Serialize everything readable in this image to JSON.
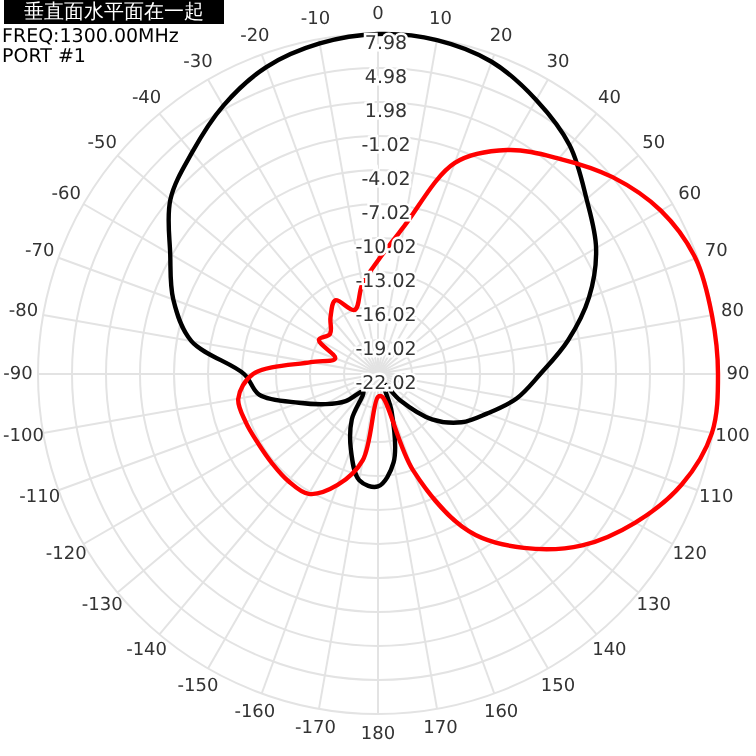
{
  "chart_data": {
    "type": "radar",
    "title": "垂直面水平面在一起",
    "annotations": [
      "FREQ:1300.00MHz",
      "PORT #1"
    ],
    "categories": [
      "0",
      "10",
      "20",
      "30",
      "40",
      "50",
      "60",
      "70",
      "80",
      "90",
      "100",
      "110",
      "120",
      "130",
      "140",
      "150",
      "160",
      "170",
      "180",
      "-170",
      "-160",
      "-150",
      "-140",
      "-130",
      "-120",
      "-110",
      "-100",
      "-90",
      "-80",
      "-70",
      "-60",
      "-50",
      "-40",
      "-30",
      "-20",
      "-10"
    ],
    "series": [
      {
        "color": "#000000",
        "values": [
          7.98,
          7.9,
          7.3,
          5.9,
          4.3,
          2.0,
          0.2,
          -2.2,
          -5.0,
          -7.7,
          -9.6,
          -11.8,
          -13.5,
          -15.8,
          -19,
          -21,
          -18.5,
          -14.1,
          -12.1,
          -12.5,
          -15,
          -17.4,
          -20,
          -18.3,
          -16.7,
          -14.6,
          -11.4,
          -10.2,
          -5.3,
          -2.8,
          -0.85,
          1.9,
          3.5,
          5.3,
          6.8,
          7.6
        ]
      },
      {
        "color": "#ff0000",
        "values": [
          -12,
          -8.8,
          -2.2,
          0.8,
          2.8,
          5.0,
          6.8,
          7.8,
          7.9,
          7.98,
          7.9,
          6.5,
          4.2,
          1.5,
          -2.0,
          -6.0,
          -13,
          -20,
          -20,
          -14.3,
          -11.6,
          -9.8,
          -9.7,
          -9.8,
          -9.8,
          -9.6,
          -9.5,
          -11,
          -16,
          -18,
          -16,
          -16.5,
          -15.5,
          -14.5,
          -16,
          -14
        ]
      }
    ],
    "ylim": [
      -22.02,
      7.98
    ],
    "yticks": [
      7.98,
      4.98,
      1.98,
      -1.02,
      -4.02,
      -7.02,
      -10.02,
      -13.02,
      -16.02,
      -19.02,
      -22.02
    ],
    "grid": true
  }
}
